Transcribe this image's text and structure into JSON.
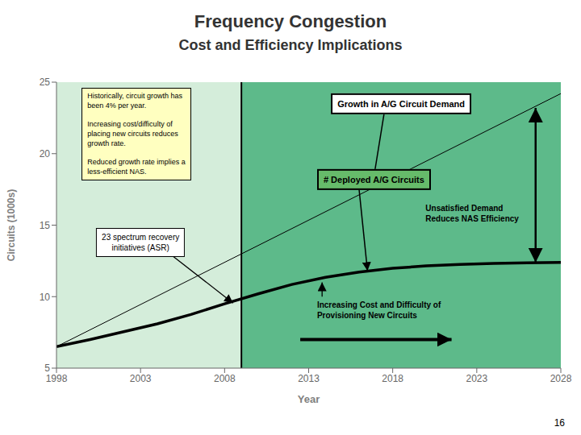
{
  "chart_data": {
    "type": "line",
    "title": "Frequency Congestion",
    "subtitle": "Cost and Efficiency Implications",
    "xlabel": "Year",
    "ylabel": "Circuits (1000s)",
    "xlim": [
      1998,
      2028
    ],
    "ylim": [
      5,
      25
    ],
    "xticks": [
      1998,
      2003,
      2008,
      2013,
      2018,
      2023,
      2028
    ],
    "yticks": [
      5,
      10,
      15,
      20,
      25
    ],
    "grid": false,
    "series": [
      {
        "x": [
          1998,
          2028
        ],
        "values": [
          6.5,
          24.2
        ],
        "color": "#000000"
      },
      {
        "x": [
          1998,
          2000,
          2002,
          2004,
          2006,
          2008,
          2010,
          2012,
          2014,
          2016,
          2018,
          2020,
          2022,
          2024,
          2026,
          2028
        ],
        "values": [
          6.5,
          7.0,
          7.55,
          8.1,
          8.75,
          9.5,
          10.2,
          10.85,
          11.35,
          11.72,
          11.98,
          12.15,
          12.25,
          12.32,
          12.36,
          12.4
        ],
        "color": "#000000"
      }
    ],
    "vlines": [
      2009
    ],
    "regions": [
      {
        "from": 1998,
        "to": 2009,
        "color": "#d4edda"
      },
      {
        "from": 2009,
        "to": 2028,
        "color": "#5dba8a"
      }
    ],
    "annotations": [
      "Historically, circuit growth has\nbeen 4% per year.\n\nIncreasing cost/difficulty of\nplacing new circuits reduces\ngrowth rate.\n\nReduced growth rate implies a\nless-efficient NAS.",
      "23 spectrum recovery\ninitiatives (ASR)",
      "Growth in A/G Circuit Demand",
      "# Deployed A/G Circuits",
      "Unsatisfied Demand\nReduces NAS Efficiency",
      "Increasing Cost and Difficulty of\nProvisioning New Circuits"
    ],
    "page_number": "16"
  }
}
